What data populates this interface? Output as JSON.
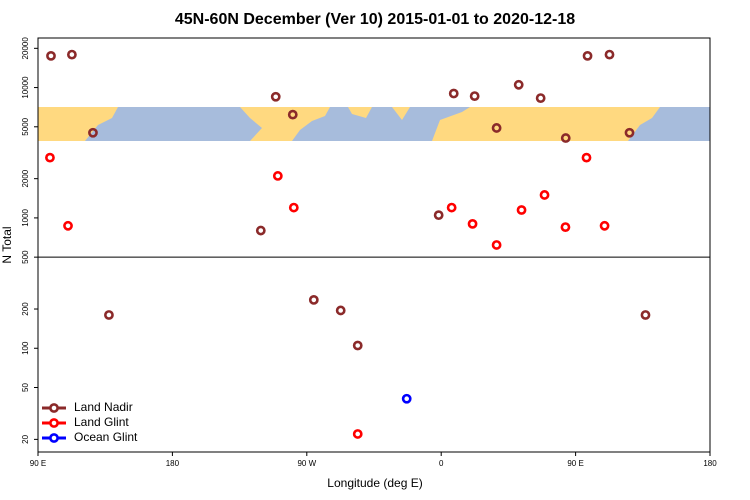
{
  "chart_data": {
    "type": "scatter",
    "title": "45N-60N December (Ver 10)   2015-01-01 to 2020-12-18",
    "x_label": "Longitude (deg E)",
    "y_label": "N Total",
    "xlim": [
      90,
      540
    ],
    "xticks": [
      {
        "value": 90,
        "label": "90 E"
      },
      180,
      {
        "value": 270,
        "label": "90 W"
      },
      {
        "value": 360,
        "label": "0"
      },
      {
        "value": 450,
        "label": "90 E"
      },
      {
        "value": 540,
        "label": "180"
      }
    ],
    "ylim": [
      16,
      24000
    ],
    "log_y": true,
    "yticks": [
      20,
      50,
      100,
      200,
      500,
      1000,
      2000,
      5000,
      10000,
      20000
    ],
    "hline": 500,
    "legend": "bottom-left",
    "series": [
      {
        "name": "Land Nadir",
        "color": "#8b2a2a",
        "x": [
          98.7,
          112.7,
          126.8,
          137.5,
          239.2,
          249.2,
          260.6,
          274.7,
          292.7,
          304.1,
          358.3,
          368.4,
          382.4,
          397.1,
          411.9,
          426.6,
          443.4,
          458.0,
          472.7,
          486.1,
          496.8
        ],
        "values": [
          17500,
          17900,
          4500,
          180,
          800,
          8500,
          6200,
          235,
          195,
          105,
          1050,
          9000,
          8600,
          4900,
          10500,
          8300,
          4100,
          17500,
          17900,
          4500,
          180
        ]
      },
      {
        "name": "Land Glint",
        "color": "#ff0000",
        "x": [
          98.0,
          110.1,
          250.6,
          261.3,
          304.1,
          367.0,
          381.0,
          397.1,
          413.8,
          429.2,
          443.2,
          457.3,
          469.4
        ],
        "values": [
          2900,
          870,
          2100,
          1200,
          22,
          1200,
          900,
          620,
          1150,
          1500,
          850,
          2900,
          870
        ]
      },
      {
        "name": "Ocean Glint",
        "color": "#0000ff",
        "x": [
          336.9
        ],
        "values": [
          41
        ]
      }
    ]
  }
}
